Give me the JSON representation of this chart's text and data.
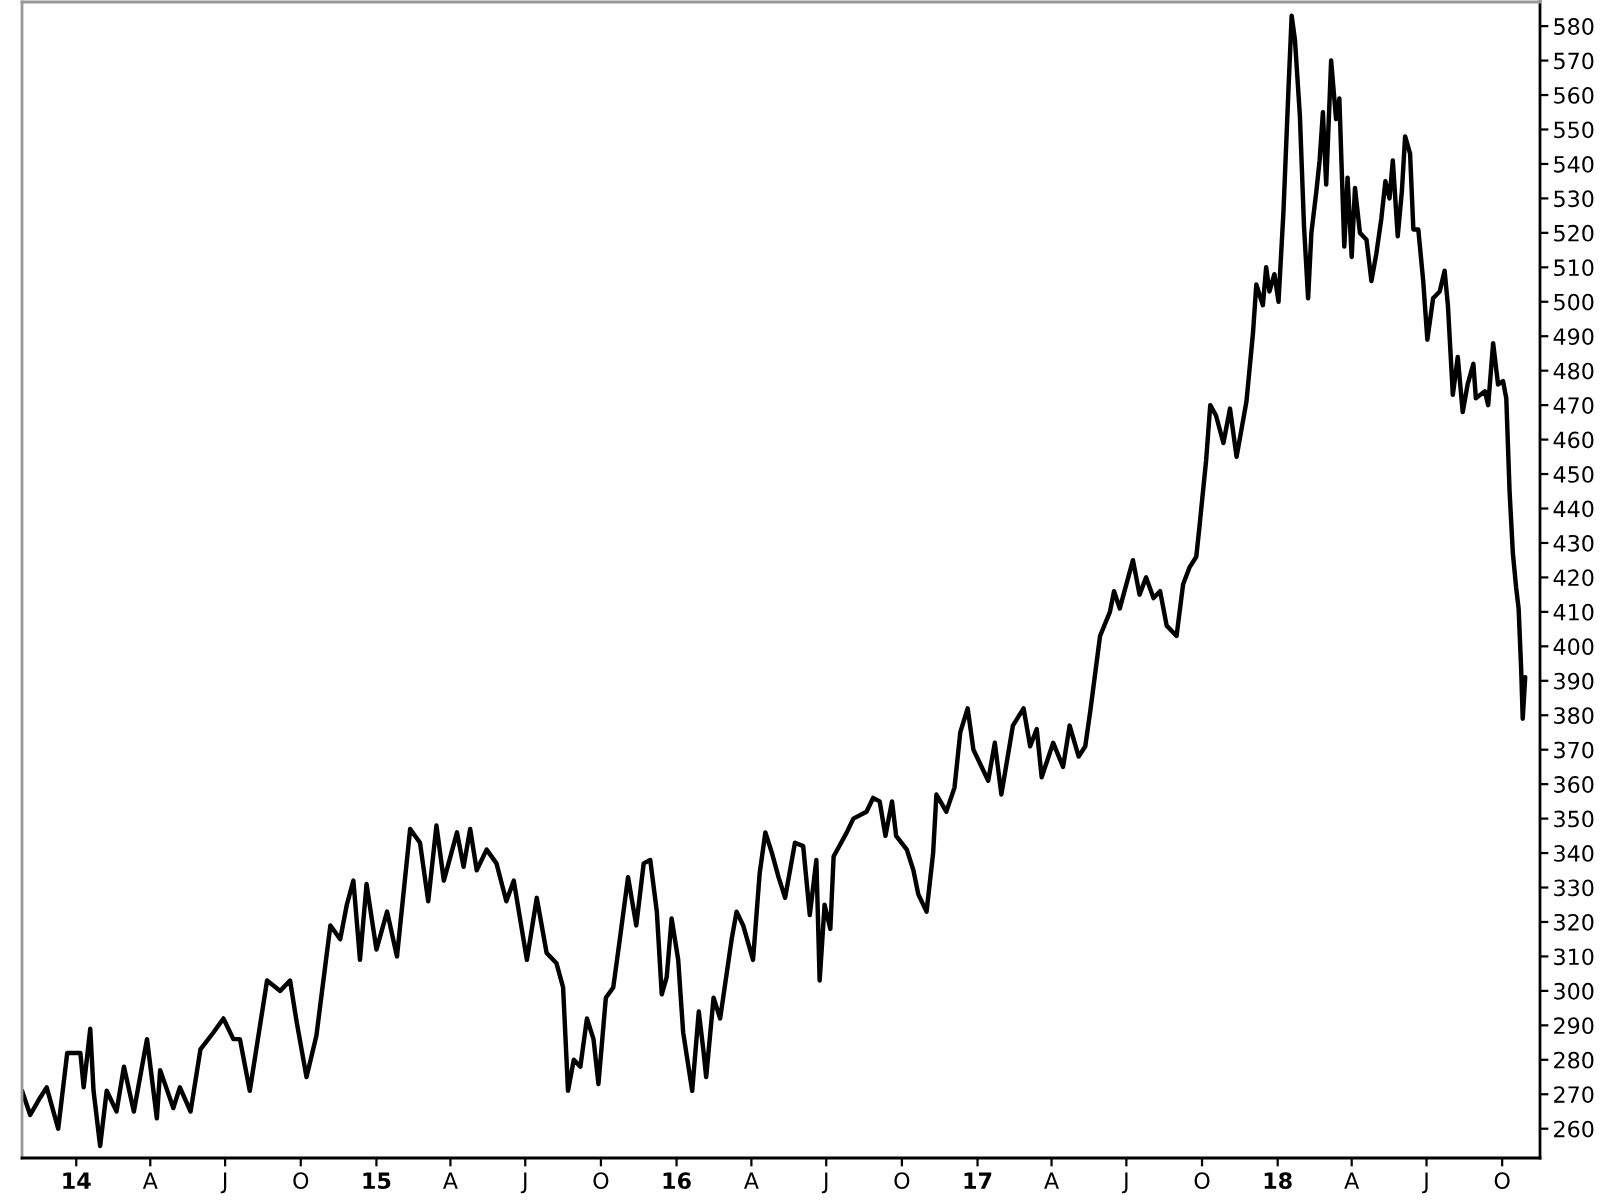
{
  "chart_data": {
    "type": "line",
    "x": [
      "2013-10-27",
      "2013-11-06",
      "2013-11-18",
      "2013-11-26",
      "2013-12-10",
      "2013-12-21",
      "2014-01-06",
      "2014-01-10",
      "2014-01-18",
      "2014-01-22",
      "2014-01-30",
      "2014-02-07",
      "2014-02-19",
      "2014-02-28",
      "2014-03-12",
      "2014-03-28",
      "2014-04-09",
      "2014-04-13",
      "2014-04-29",
      "2014-05-07",
      "2014-05-20",
      "2014-06-01",
      "2014-06-17",
      "2014-06-29",
      "2014-07-11",
      "2014-07-19",
      "2014-07-31",
      "2014-08-21",
      "2014-09-06",
      "2014-09-18",
      "2014-09-26",
      "2014-10-08",
      "2014-10-20",
      "2014-11-06",
      "2014-11-18",
      "2014-11-26",
      "2014-12-04",
      "2014-12-12",
      "2014-12-20",
      "2015-01-01",
      "2015-01-14",
      "2015-01-26",
      "2015-02-11",
      "2015-02-23",
      "2015-03-05",
      "2015-03-15",
      "2015-03-24",
      "2015-04-09",
      "2015-04-17",
      "2015-04-25",
      "2015-05-03",
      "2015-05-15",
      "2015-05-27",
      "2015-06-08",
      "2015-06-17",
      "2015-07-03",
      "2015-07-15",
      "2015-07-27",
      "2015-08-08",
      "2015-08-16",
      "2015-08-22",
      "2015-08-29",
      "2015-09-06",
      "2015-09-14",
      "2015-09-22",
      "2015-09-28",
      "2015-10-07",
      "2015-10-16",
      "2015-10-24",
      "2015-11-03",
      "2015-11-13",
      "2015-11-22",
      "2015-11-30",
      "2015-12-08",
      "2015-12-14",
      "2015-12-20",
      "2015-12-26",
      "2016-01-03",
      "2016-01-09",
      "2016-01-20",
      "2016-01-28",
      "2016-02-03",
      "2016-02-06",
      "2016-02-15",
      "2016-02-23",
      "2016-03-08",
      "2016-03-14",
      "2016-03-22",
      "2016-04-03",
      "2016-04-11",
      "2016-04-18",
      "2016-04-26",
      "2016-05-04",
      "2016-05-12",
      "2016-05-24",
      "2016-06-03",
      "2016-06-11",
      "2016-06-19",
      "2016-06-23",
      "2016-06-29",
      "2016-07-06",
      "2016-07-10",
      "2016-07-26",
      "2016-08-03",
      "2016-08-19",
      "2016-08-27",
      "2016-09-04",
      "2016-09-11",
      "2016-09-19",
      "2016-09-24",
      "2016-10-07",
      "2016-10-15",
      "2016-10-21",
      "2016-10-31",
      "2016-11-08",
      "2016-11-12",
      "2016-11-24",
      "2016-12-04",
      "2016-12-11",
      "2016-12-20",
      "2016-12-27",
      "2017-01-04",
      "2017-01-14",
      "2017-01-22",
      "2017-01-30",
      "2017-02-13",
      "2017-02-26",
      "2017-03-06",
      "2017-03-14",
      "2017-03-20",
      "2017-04-03",
      "2017-04-15",
      "2017-04-23",
      "2017-05-04",
      "2017-05-12",
      "2017-05-18",
      "2017-05-24",
      "2017-05-30",
      "2017-06-11",
      "2017-06-16",
      "2017-06-23",
      "2017-07-09",
      "2017-07-17",
      "2017-07-25",
      "2017-08-03",
      "2017-08-11",
      "2017-08-19",
      "2017-08-31",
      "2017-09-08",
      "2017-09-16",
      "2017-09-24",
      "2017-09-28",
      "2017-10-06",
      "2017-10-11",
      "2017-10-18",
      "2017-10-27",
      "2017-11-04",
      "2017-11-12",
      "2017-11-24",
      "2017-12-02",
      "2017-12-06",
      "2017-12-14",
      "2017-12-18",
      "2017-12-22",
      "2017-12-28",
      "2018-01-02",
      "2018-01-08",
      "2018-01-14",
      "2018-01-18",
      "2018-01-22",
      "2018-01-28",
      "2018-02-02",
      "2018-02-07",
      "2018-02-11",
      "2018-02-17",
      "2018-02-21",
      "2018-02-25",
      "2018-03-01",
      "2018-03-07",
      "2018-03-13",
      "2018-03-17",
      "2018-03-23",
      "2018-03-27",
      "2018-04-01",
      "2018-04-05",
      "2018-04-11",
      "2018-04-19",
      "2018-04-25",
      "2018-05-01",
      "2018-05-07",
      "2018-05-12",
      "2018-05-17",
      "2018-05-21",
      "2018-05-27",
      "2018-06-01",
      "2018-06-05",
      "2018-06-11",
      "2018-06-15",
      "2018-06-21",
      "2018-06-27",
      "2018-07-02",
      "2018-07-09",
      "2018-07-17",
      "2018-07-23",
      "2018-07-27",
      "2018-08-02",
      "2018-08-08",
      "2018-08-14",
      "2018-08-20",
      "2018-08-27",
      "2018-08-30",
      "2018-09-10",
      "2018-09-14",
      "2018-09-20",
      "2018-09-26",
      "2018-10-02",
      "2018-10-06",
      "2018-10-10",
      "2018-10-14",
      "2018-10-18",
      "2018-10-21",
      "2018-10-24",
      "2018-10-26",
      "2018-10-29"
    ],
    "series": [
      {
        "color": "#000000",
        "values": [
          271,
          264,
          269,
          272,
          260,
          282,
          282,
          272,
          289,
          271,
          255,
          271,
          265,
          278,
          265,
          286,
          263,
          277,
          266,
          272,
          265,
          283,
          288,
          292,
          286,
          286,
          271,
          303,
          300,
          303,
          291,
          275,
          287,
          319,
          315,
          325,
          332,
          309,
          331,
          312,
          323,
          310,
          347,
          343,
          326,
          348,
          332,
          346,
          336,
          347,
          335,
          341,
          337,
          326,
          332,
          309,
          327,
          311,
          308,
          301,
          271,
          280,
          278,
          292,
          286,
          273,
          298,
          301,
          315,
          333,
          319,
          337,
          338,
          323,
          299,
          304,
          321,
          309,
          288,
          271,
          294,
          282,
          275,
          298,
          292,
          315,
          323,
          319,
          309,
          334,
          346,
          340,
          333,
          327,
          343,
          342,
          322,
          338,
          303,
          325,
          318,
          339,
          346,
          350,
          352,
          356,
          355,
          345,
          355,
          345,
          341,
          335,
          328,
          323,
          340,
          357,
          352,
          359,
          375,
          382,
          370,
          366,
          361,
          372,
          357,
          377,
          382,
          371,
          376,
          362,
          372,
          365,
          377,
          368,
          371,
          381,
          392,
          403,
          410,
          416,
          411,
          425,
          415,
          420,
          414,
          416,
          406,
          403,
          418,
          423,
          426,
          435,
          454,
          470,
          467,
          459,
          469,
          455,
          471,
          491,
          505,
          499,
          510,
          503,
          508,
          500,
          526,
          561,
          583,
          576,
          554,
          522,
          501,
          520,
          532,
          541,
          555,
          534,
          570,
          553,
          559,
          516,
          536,
          513,
          533,
          520,
          518,
          506,
          514,
          524,
          535,
          530,
          541,
          519,
          532,
          548,
          543,
          521,
          521,
          506,
          489,
          501,
          503,
          509,
          499,
          473,
          484,
          468,
          476,
          482,
          472,
          474,
          470,
          488,
          476,
          477,
          472,
          445,
          427,
          417,
          411,
          394,
          379,
          391
        ]
      }
    ],
    "xlim": [
      "2013-10-27",
      "2018-11-16"
    ],
    "xticks": [
      {
        "value": "2014-01-01",
        "label": "14"
      },
      {
        "value": "2014-04-01",
        "label": "A"
      },
      {
        "value": "2014-07-01",
        "label": "J"
      },
      {
        "value": "2014-10-01",
        "label": "O"
      },
      {
        "value": "2015-01-01",
        "label": "15"
      },
      {
        "value": "2015-04-01",
        "label": "A"
      },
      {
        "value": "2015-07-01",
        "label": "J"
      },
      {
        "value": "2015-10-01",
        "label": "O"
      },
      {
        "value": "2016-01-01",
        "label": "16"
      },
      {
        "value": "2016-04-01",
        "label": "A"
      },
      {
        "value": "2016-07-01",
        "label": "J"
      },
      {
        "value": "2016-10-01",
        "label": "O"
      },
      {
        "value": "2017-01-01",
        "label": "17"
      },
      {
        "value": "2017-04-01",
        "label": "A"
      },
      {
        "value": "2017-07-01",
        "label": "J"
      },
      {
        "value": "2017-10-01",
        "label": "O"
      },
      {
        "value": "2018-01-01",
        "label": "18"
      },
      {
        "value": "2018-04-01",
        "label": "A"
      },
      {
        "value": "2018-07-01",
        "label": "J"
      },
      {
        "value": "2018-10-01",
        "label": "O"
      }
    ],
    "ylim": [
      251.5,
      587
    ],
    "yticks": [
      260,
      270,
      280,
      290,
      300,
      310,
      320,
      330,
      340,
      350,
      360,
      370,
      380,
      390,
      400,
      410,
      420,
      430,
      440,
      450,
      460,
      470,
      480,
      490,
      500,
      510,
      520,
      530,
      540,
      550,
      560,
      570,
      580
    ],
    "line_style": "solid"
  }
}
